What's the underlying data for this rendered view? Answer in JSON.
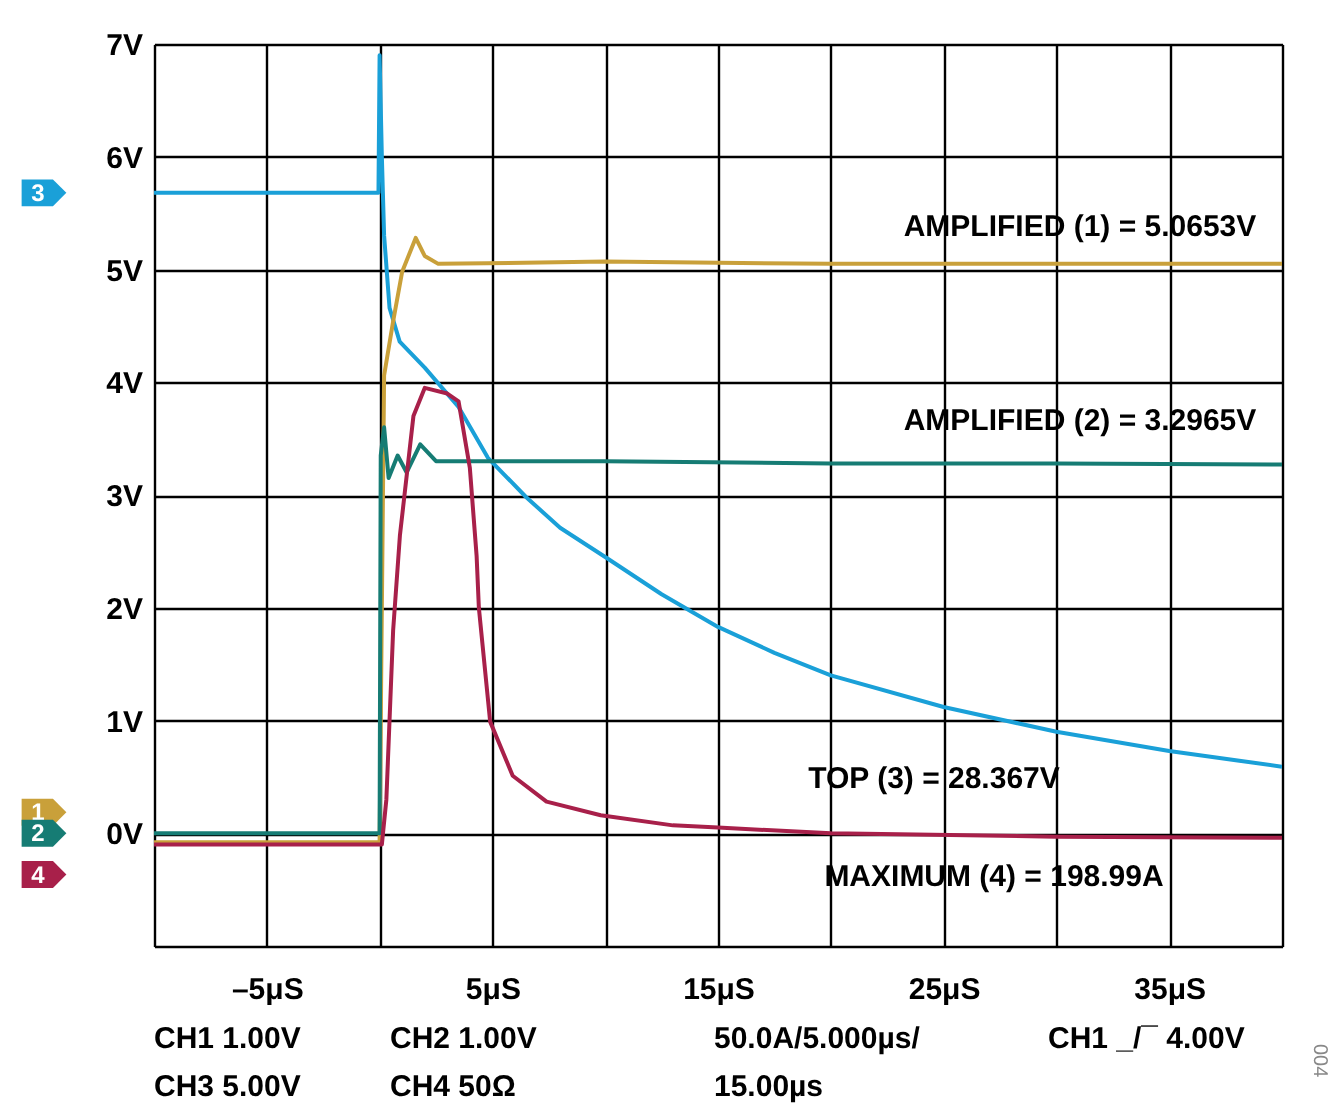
{
  "chart_data": {
    "type": "line",
    "xlim": [
      -10,
      40
    ],
    "ylim": [
      -1,
      7
    ],
    "xticks": [
      {
        "value": -10,
        "label": null
      },
      {
        "value": -5,
        "label": "–5μS"
      },
      {
        "value": 0,
        "label": null
      },
      {
        "value": 5,
        "label": "5μS"
      },
      {
        "value": 10,
        "label": null
      },
      {
        "value": 15,
        "label": "15μS"
      },
      {
        "value": 20,
        "label": null
      },
      {
        "value": 25,
        "label": "25μS"
      },
      {
        "value": 30,
        "label": null
      },
      {
        "value": 35,
        "label": "35μS"
      },
      {
        "value": 40,
        "label": null
      }
    ],
    "yticks": [
      {
        "value": -1,
        "label": null
      },
      {
        "value": 0,
        "label": "0V"
      },
      {
        "value": 1,
        "label": "1V"
      },
      {
        "value": 2,
        "label": "2V"
      },
      {
        "value": 3,
        "label": "3V"
      },
      {
        "value": 4,
        "label": "4V"
      },
      {
        "value": 5,
        "label": "5V"
      },
      {
        "value": 6,
        "label": "6V"
      },
      {
        "value": 7,
        "label": "7V"
      }
    ],
    "grid": true,
    "line_style": "solid",
    "series": [
      {
        "name": "3",
        "color": "#1aa0d8",
        "x": [
          -10,
          -0.05,
          0,
          0.1,
          0.2,
          0.44,
          0.89,
          2.0,
          3.5,
          4.8,
          6.5,
          8.0,
          10,
          12.5,
          15,
          17.5,
          20,
          25,
          30,
          35,
          40
        ],
        "values": [
          5.68,
          5.68,
          6.9,
          6.0,
          5.3,
          4.66,
          4.36,
          4.13,
          3.78,
          3.33,
          2.98,
          2.71,
          2.45,
          2.12,
          1.83,
          1.6,
          1.4,
          1.12,
          0.9,
          0.73,
          0.59
        ]
      },
      {
        "name": "1",
        "color": "#c9a03a",
        "x": [
          -10,
          0,
          0.2,
          0.6,
          1.0,
          1.6,
          2.0,
          2.6,
          10,
          20,
          30,
          40
        ],
        "values": [
          -0.08,
          -0.08,
          4.06,
          4.54,
          4.98,
          5.28,
          5.12,
          5.05,
          5.07,
          5.05,
          5.05,
          5.05
        ]
      },
      {
        "name": "2",
        "color": "#167c74",
        "x": [
          -10,
          0,
          0.05,
          0.2,
          0.4,
          0.8,
          1.2,
          1.8,
          2.5,
          10,
          20,
          30,
          40
        ],
        "values": [
          0.0,
          0.0,
          3.35,
          3.6,
          3.15,
          3.35,
          3.2,
          3.45,
          3.3,
          3.3,
          3.28,
          3.28,
          3.27
        ]
      },
      {
        "name": "4",
        "color": "#a8204a",
        "x": [
          -10,
          0,
          0.1,
          0.3,
          0.6,
          0.9,
          1.5,
          2.0,
          3.0,
          3.5,
          4.0,
          4.3,
          4.4,
          4.9,
          5.9,
          7.4,
          9.8,
          13,
          15,
          20,
          30,
          40
        ],
        "values": [
          -0.1,
          -0.1,
          -0.1,
          0.3,
          1.8,
          2.64,
          3.7,
          3.95,
          3.9,
          3.83,
          3.24,
          2.46,
          2.0,
          0.99,
          0.51,
          0.28,
          0.16,
          0.07,
          0.05,
          0.0,
          -0.03,
          -0.04
        ]
      }
    ],
    "annotations": [
      "AMPLIFIED (1) = 5.0653V",
      "AMPLIFIED (2) = 3.2965V",
      "TOP (3) = 28.367V",
      "MAXIMUM (4) = 198.99A",
      "CH1  1.00V",
      "CH2  1.00V",
      "50.0A/5.000µs/\n15.00µs",
      "CH1 _/¯ 4.00V",
      "CH3  5.00V",
      "CH4  50Ω",
      "004"
    ]
  }
}
